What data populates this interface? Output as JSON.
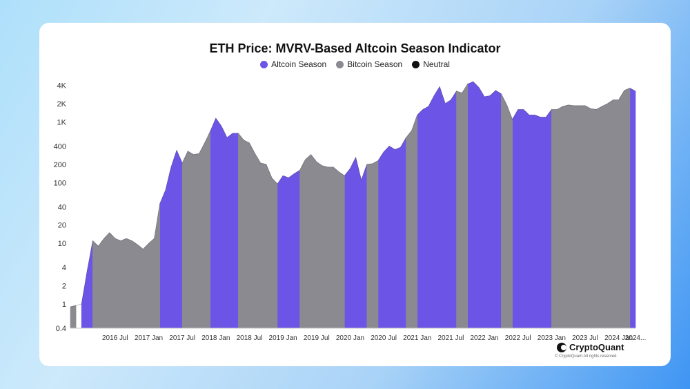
{
  "title": "ETH Price: MVRV-Based Altcoin Season Indicator",
  "legend": [
    {
      "label": "Altcoin Season",
      "color": "#6c55e6"
    },
    {
      "label": "Bitcoin Season",
      "color": "#8a8a90"
    },
    {
      "label": "Neutral",
      "color": "#111111"
    }
  ],
  "brand": {
    "name": "CryptoQuant",
    "rights": "© CryptoQuant All rights reserved.",
    "icon": "cryptoquant-logo-icon"
  },
  "chart_data": {
    "type": "area",
    "title": "ETH Price: MVRV-Based Altcoin Season Indicator",
    "xlabel": "",
    "ylabel": "",
    "y_scale": "log",
    "ylim": [
      0.4,
      5000
    ],
    "y_ticks": [
      {
        "value": 0.4,
        "label": "0.4"
      },
      {
        "value": 1,
        "label": "1"
      },
      {
        "value": 2,
        "label": "2"
      },
      {
        "value": 4,
        "label": "4"
      },
      {
        "value": 10,
        "label": "10"
      },
      {
        "value": 20,
        "label": "20"
      },
      {
        "value": 40,
        "label": "40"
      },
      {
        "value": 100,
        "label": "100"
      },
      {
        "value": 200,
        "label": "200"
      },
      {
        "value": 400,
        "label": "400"
      },
      {
        "value": 1000,
        "label": "1K"
      },
      {
        "value": 2000,
        "label": "2K"
      },
      {
        "value": 4000,
        "label": "4K"
      }
    ],
    "x_range": [
      "2015-11",
      "2024-04"
    ],
    "x_ticks": [
      {
        "date": "2016-07",
        "label": "2016 Jul"
      },
      {
        "date": "2017-01",
        "label": "2017 Jan"
      },
      {
        "date": "2017-07",
        "label": "2017 Jul"
      },
      {
        "date": "2018-01",
        "label": "2018 Jan"
      },
      {
        "date": "2018-07",
        "label": "2018 Jul"
      },
      {
        "date": "2019-01",
        "label": "2019 Jan"
      },
      {
        "date": "2019-07",
        "label": "2019 Jul"
      },
      {
        "date": "2020-01",
        "label": "2020 Jan"
      },
      {
        "date": "2020-07",
        "label": "2020 Jul"
      },
      {
        "date": "2021-01",
        "label": "2021 Jan"
      },
      {
        "date": "2021-07",
        "label": "2021 Jul"
      },
      {
        "date": "2022-01",
        "label": "2022 Jan"
      },
      {
        "date": "2022-07",
        "label": "2022 Jul"
      },
      {
        "date": "2023-01",
        "label": "2023 Jan"
      },
      {
        "date": "2023-07",
        "label": "2023 Jul"
      },
      {
        "date": "2024-01",
        "label": "2024 Jan"
      },
      {
        "date": "2024-04",
        "label": "2024..."
      }
    ],
    "grid": false,
    "legend_position": "top-center",
    "series": [
      {
        "name": "ETH Price",
        "points": [
          [
            "2015-11",
            0.9
          ],
          [
            "2016-01",
            1.0
          ],
          [
            "2016-02",
            3.5
          ],
          [
            "2016-03",
            11
          ],
          [
            "2016-04",
            9
          ],
          [
            "2016-05",
            12
          ],
          [
            "2016-06",
            15
          ],
          [
            "2016-07",
            12
          ],
          [
            "2016-08",
            11
          ],
          [
            "2016-09",
            12
          ],
          [
            "2016-10",
            11
          ],
          [
            "2016-11",
            9.5
          ],
          [
            "2016-12",
            8
          ],
          [
            "2017-01",
            10
          ],
          [
            "2017-02",
            12
          ],
          [
            "2017-03",
            45
          ],
          [
            "2017-04",
            75
          ],
          [
            "2017-05",
            180
          ],
          [
            "2017-06",
            340
          ],
          [
            "2017-07",
            210
          ],
          [
            "2017-08",
            330
          ],
          [
            "2017-09",
            290
          ],
          [
            "2017-10",
            300
          ],
          [
            "2017-11",
            450
          ],
          [
            "2017-12",
            700
          ],
          [
            "2018-01",
            1150
          ],
          [
            "2018-02",
            850
          ],
          [
            "2018-03",
            550
          ],
          [
            "2018-04",
            650
          ],
          [
            "2018-05",
            650
          ],
          [
            "2018-06",
            500
          ],
          [
            "2018-07",
            450
          ],
          [
            "2018-08",
            300
          ],
          [
            "2018-09",
            210
          ],
          [
            "2018-10",
            200
          ],
          [
            "2018-11",
            120
          ],
          [
            "2018-12",
            95
          ],
          [
            "2019-01",
            130
          ],
          [
            "2019-02",
            120
          ],
          [
            "2019-03",
            140
          ],
          [
            "2019-04",
            160
          ],
          [
            "2019-05",
            240
          ],
          [
            "2019-06",
            290
          ],
          [
            "2019-07",
            220
          ],
          [
            "2019-08",
            190
          ],
          [
            "2019-09",
            180
          ],
          [
            "2019-10",
            180
          ],
          [
            "2019-11",
            150
          ],
          [
            "2019-12",
            130
          ],
          [
            "2020-01",
            170
          ],
          [
            "2020-02",
            260
          ],
          [
            "2020-03",
            110
          ],
          [
            "2020-04",
            200
          ],
          [
            "2020-05",
            205
          ],
          [
            "2020-06",
            230
          ],
          [
            "2020-07",
            320
          ],
          [
            "2020-08",
            400
          ],
          [
            "2020-09",
            350
          ],
          [
            "2020-10",
            380
          ],
          [
            "2020-11",
            550
          ],
          [
            "2020-12",
            720
          ],
          [
            "2021-01",
            1300
          ],
          [
            "2021-02",
            1600
          ],
          [
            "2021-03",
            1800
          ],
          [
            "2021-04",
            2700
          ],
          [
            "2021-05",
            3800
          ],
          [
            "2021-06",
            2000
          ],
          [
            "2021-07",
            2300
          ],
          [
            "2021-08",
            3200
          ],
          [
            "2021-09",
            3000
          ],
          [
            "2021-10",
            4200
          ],
          [
            "2021-11",
            4600
          ],
          [
            "2021-12",
            3700
          ],
          [
            "2022-01",
            2600
          ],
          [
            "2022-02",
            2700
          ],
          [
            "2022-03",
            3300
          ],
          [
            "2022-04",
            2900
          ],
          [
            "2022-05",
            1900
          ],
          [
            "2022-06",
            1100
          ],
          [
            "2022-07",
            1600
          ],
          [
            "2022-08",
            1600
          ],
          [
            "2022-09",
            1300
          ],
          [
            "2022-10",
            1300
          ],
          [
            "2022-11",
            1200
          ],
          [
            "2022-12",
            1200
          ],
          [
            "2023-01",
            1600
          ],
          [
            "2023-02",
            1600
          ],
          [
            "2023-03",
            1800
          ],
          [
            "2023-04",
            1900
          ],
          [
            "2023-05",
            1850
          ],
          [
            "2023-06",
            1850
          ],
          [
            "2023-07",
            1850
          ],
          [
            "2023-08",
            1650
          ],
          [
            "2023-09",
            1600
          ],
          [
            "2023-10",
            1800
          ],
          [
            "2023-11",
            2000
          ],
          [
            "2023-12",
            2300
          ],
          [
            "2024-01",
            2300
          ],
          [
            "2024-02",
            3300
          ],
          [
            "2024-03",
            3600
          ],
          [
            "2024-04",
            3200
          ]
        ]
      }
    ],
    "regime_series": [
      {
        "name": "Altcoin Season",
        "color": "#6c55e6",
        "ranges": [
          [
            "2016-01",
            "2016-03"
          ],
          [
            "2017-03",
            "2017-07"
          ],
          [
            "2017-12",
            "2018-05"
          ],
          [
            "2018-12",
            "2019-04"
          ],
          [
            "2019-12",
            "2020-04"
          ],
          [
            "2020-06",
            "2020-11"
          ],
          [
            "2021-01",
            "2021-08"
          ],
          [
            "2021-10",
            "2022-04"
          ],
          [
            "2022-06",
            "2023-01"
          ],
          [
            "2023-09",
            "2023-09"
          ],
          [
            "2024-01",
            "2024-01"
          ],
          [
            "2024-03",
            "2024-04"
          ]
        ]
      },
      {
        "name": "Bitcoin Season",
        "color": "#8a8a90",
        "ranges": [
          [
            "2015-11",
            "2015-12"
          ],
          [
            "2016-03",
            "2017-03"
          ],
          [
            "2017-07",
            "2017-12"
          ],
          [
            "2018-05",
            "2018-12"
          ],
          [
            "2019-04",
            "2019-12"
          ],
          [
            "2020-04",
            "2020-06"
          ],
          [
            "2020-11",
            "2021-01"
          ],
          [
            "2021-08",
            "2021-10"
          ],
          [
            "2022-04",
            "2022-06"
          ],
          [
            "2023-01",
            "2024-03"
          ]
        ]
      },
      {
        "name": "Neutral",
        "color": "#111111",
        "ranges": []
      }
    ]
  }
}
